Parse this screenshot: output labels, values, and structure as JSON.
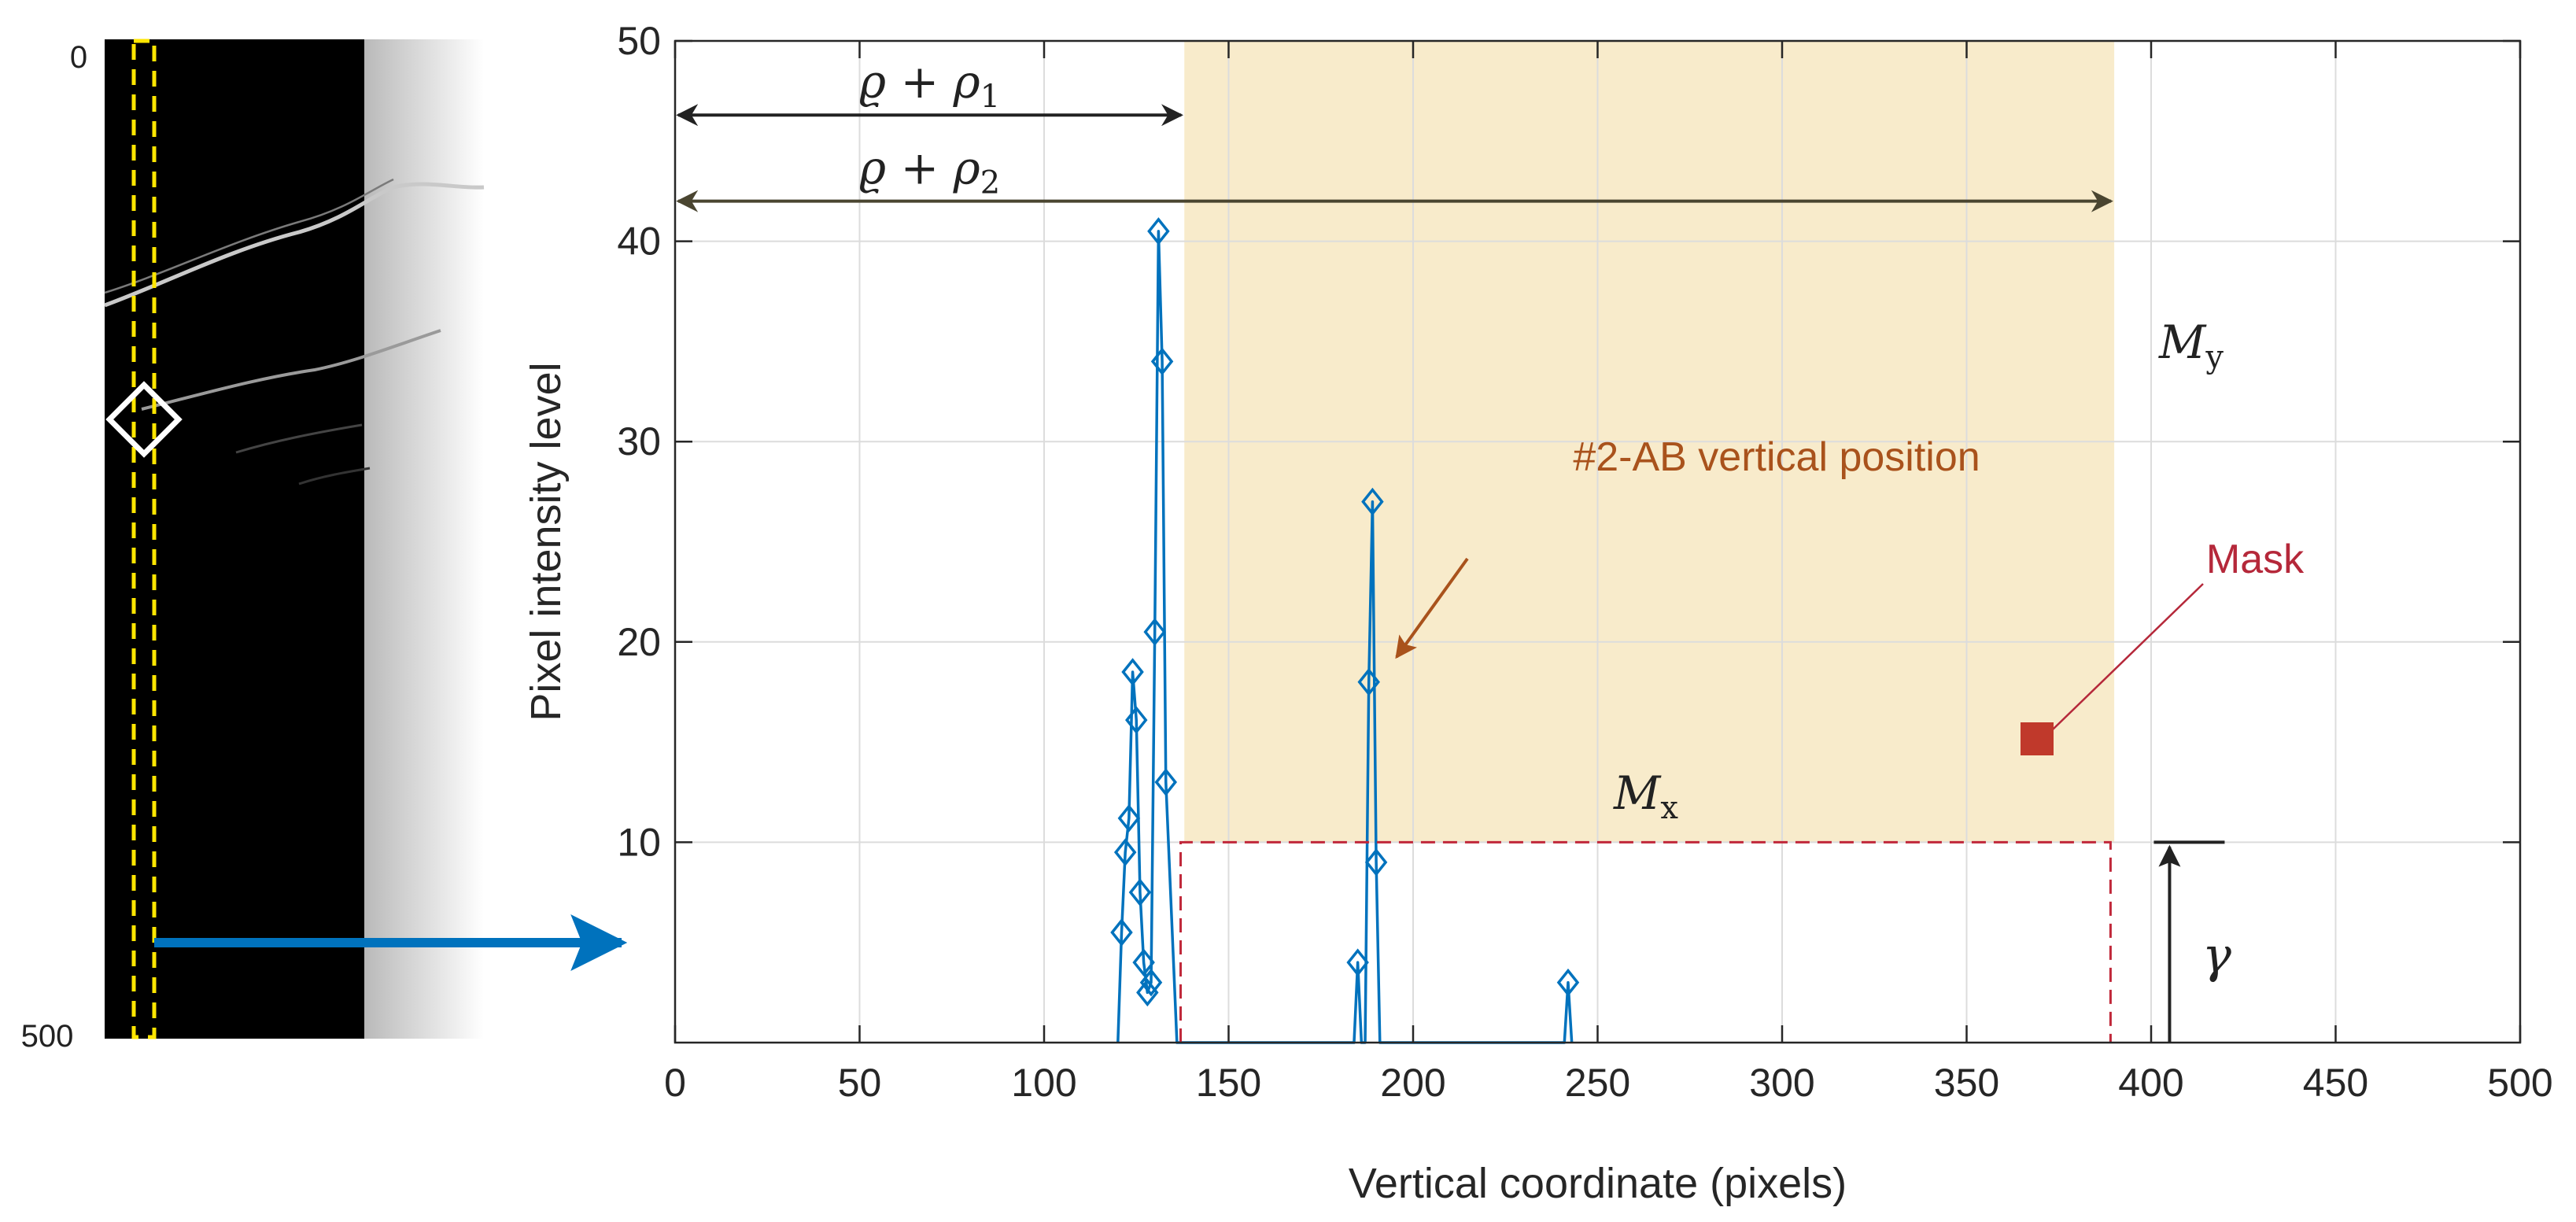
{
  "chart_data": {
    "type": "line",
    "xlabel": "Vertical coordinate (pixels)",
    "ylabel": "Pixel intensity level",
    "xlim": [
      0,
      500
    ],
    "ylim": [
      0,
      50
    ],
    "xticks": [
      0,
      50,
      100,
      150,
      200,
      250,
      300,
      350,
      400,
      450,
      500
    ],
    "yticks": [
      10,
      20,
      30,
      40,
      50
    ],
    "grid": true,
    "series": [
      {
        "color": "#0072BD",
        "marker": "diamond",
        "points": [
          [
            120,
            0
          ],
          [
            121,
            5.5
          ],
          [
            122,
            9.5
          ],
          [
            123,
            11.2
          ],
          [
            124,
            18.5
          ],
          [
            125,
            16.1
          ],
          [
            126,
            7.5
          ],
          [
            127,
            4
          ],
          [
            128,
            2.5
          ],
          [
            129,
            3
          ],
          [
            130,
            20.5
          ],
          [
            131,
            40.5
          ],
          [
            132,
            34
          ],
          [
            133,
            13
          ],
          [
            136,
            0
          ],
          [
            184,
            0
          ],
          [
            185,
            4
          ],
          [
            186,
            0
          ],
          [
            187,
            0
          ],
          [
            188,
            18
          ],
          [
            189,
            27
          ],
          [
            190,
            9
          ],
          [
            191,
            0
          ],
          [
            241,
            0
          ],
          [
            242,
            3
          ],
          [
            243,
            0
          ]
        ],
        "marked_points": [
          [
            121,
            5.5
          ],
          [
            122,
            9.5
          ],
          [
            123,
            11.2
          ],
          [
            124,
            18.5
          ],
          [
            125,
            16.1
          ],
          [
            126,
            7.5
          ],
          [
            127,
            4
          ],
          [
            128,
            2.5
          ],
          [
            129,
            3
          ],
          [
            130,
            20.5
          ],
          [
            131,
            40.5
          ],
          [
            132,
            34
          ],
          [
            133,
            13
          ],
          [
            185,
            4
          ],
          [
            188,
            18
          ],
          [
            189,
            27
          ],
          [
            190,
            9
          ],
          [
            242,
            3
          ]
        ]
      }
    ],
    "shaded_region": {
      "x": [
        138,
        390
      ],
      "y": [
        10,
        50
      ],
      "color": "#F8EBCB"
    },
    "mask_rect": {
      "x": [
        137,
        389
      ],
      "y": [
        0,
        10
      ],
      "color": "#C0283A",
      "style": "dashed"
    },
    "annotations": {
      "arrow1_label": "ϱ + ρ",
      "arrow1_sub": "1",
      "arrow1_range": [
        0,
        138
      ],
      "arrow1_y": 46.3,
      "arrow2_label": "ϱ + ρ",
      "arrow2_sub": "2",
      "arrow2_range": [
        0,
        390
      ],
      "arrow2_y": 42,
      "my_label": "M",
      "my_sub": "y",
      "mx_label": "M",
      "mx_sub": "x",
      "gamma_label": "γ",
      "position_label": "#2-AB vertical position",
      "position_color": "#A9521C",
      "mask_label": "Mask",
      "mask_color": "#B5283A",
      "mask_marker_color": "#C0392B"
    },
    "inset": {
      "tick_top": "0",
      "tick_bottom": "500"
    }
  }
}
